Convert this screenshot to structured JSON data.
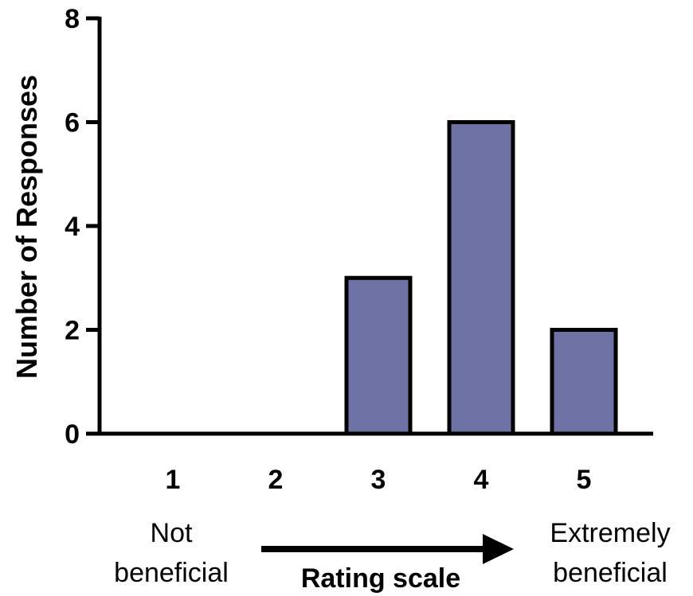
{
  "chart_data": {
    "type": "bar",
    "categories": [
      "1",
      "2",
      "3",
      "4",
      "5"
    ],
    "values": [
      0,
      0,
      3,
      6,
      2
    ],
    "ylabel": "Number of Responses",
    "ylim": [
      0,
      8
    ],
    "yticks": [
      "0",
      "2",
      "4",
      "6",
      "8"
    ],
    "grid": false,
    "bar_color": "#6e71a3",
    "bar_edge_color": "#000000"
  },
  "annotations": {
    "left_line1": "Not",
    "left_line2": "beneficial",
    "right_line1": "Extremely",
    "right_line2": "beneficial",
    "arrow_label": "Rating scale"
  }
}
